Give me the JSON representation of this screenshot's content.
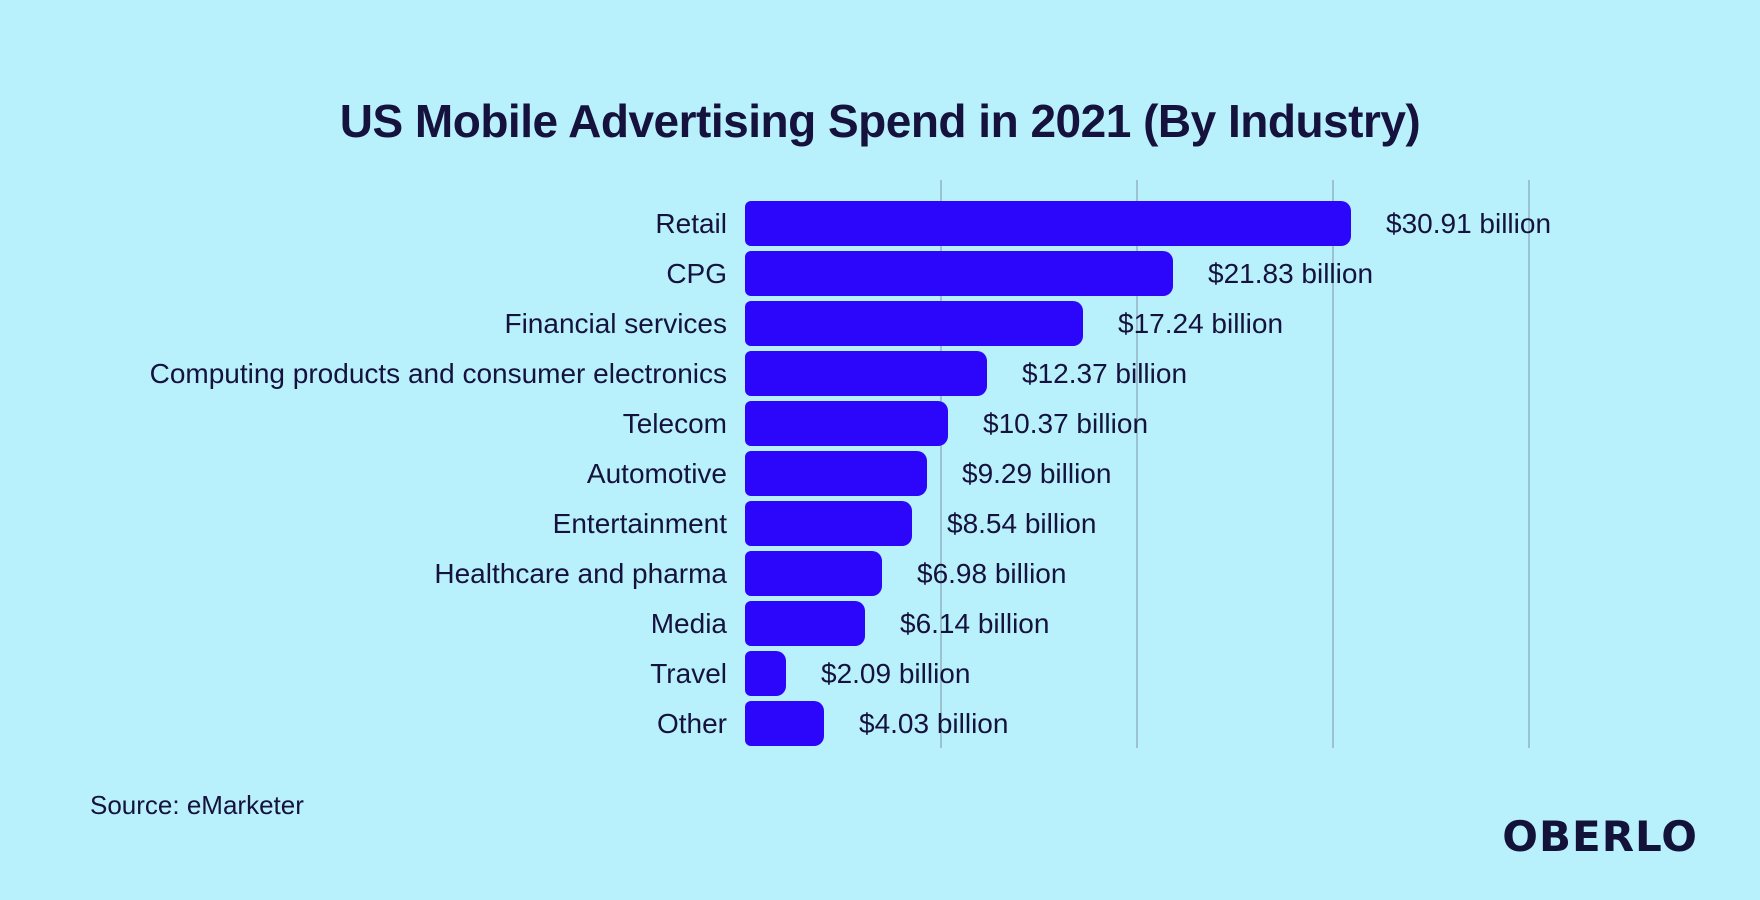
{
  "title": "US Mobile Advertising Spend in 2021 (By Industry)",
  "source_note": "Source: eMarketer",
  "logo_text": "OBERLO",
  "colors": {
    "background": "#b8f0fc",
    "bar": "#2b06fb",
    "text": "#15123d",
    "gridline": "#9cc2d0",
    "logo": "#131239"
  },
  "chart_data": {
    "type": "bar",
    "orientation": "horizontal",
    "title": "US Mobile Advertising Spend in 2021 (By Industry)",
    "unit": "USD billions",
    "categories": [
      "Retail",
      "CPG",
      "Financial services",
      "Computing products and consumer electronics",
      "Telecom",
      "Automotive",
      "Entertainment",
      "Healthcare and pharma",
      "Media",
      "Travel",
      "Other"
    ],
    "values": [
      30.91,
      21.83,
      17.24,
      12.37,
      10.37,
      9.29,
      8.54,
      6.98,
      6.14,
      2.09,
      4.03
    ],
    "value_labels": [
      "$30.91 billion",
      "$21.83 billion",
      "$17.24 billion",
      "$12.37 billion",
      "$10.37 billion",
      "$9.29 billion",
      "$8.54 billion",
      "$6.98 billion",
      "$6.14 billion",
      "$2.09 billion",
      "$4.03 billion"
    ],
    "xlim": [
      0,
      40
    ],
    "gridlines_at": [
      10,
      20,
      30,
      40
    ],
    "grid": true,
    "legend": false,
    "xlabel": "",
    "ylabel": ""
  }
}
